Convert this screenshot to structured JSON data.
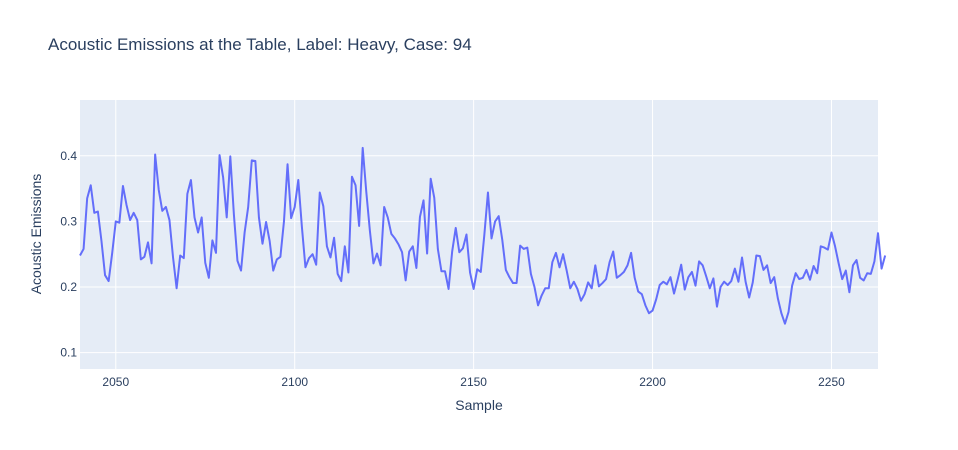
{
  "chart_data": {
    "type": "line",
    "title": "Acoustic Emissions at the Table, Label: Heavy, Case: 94",
    "xlabel": "Sample",
    "ylabel": "Acoustic Emissions",
    "xlim": [
      2040,
      2263
    ],
    "ylim": [
      0.075,
      0.485
    ],
    "xticks": [
      2050,
      2100,
      2150,
      2200,
      2250
    ],
    "yticks": [
      0.1,
      0.2,
      0.3,
      0.4
    ],
    "xtick_labels": [
      "2050",
      "2100",
      "2150",
      "2200",
      "2250"
    ],
    "ytick_labels": [
      "0.1",
      "0.2",
      "0.3",
      "0.4"
    ],
    "grid": true,
    "colors": {
      "line": "#636efa",
      "plot_bg": "#e5ecf6",
      "grid": "#ffffff",
      "text": "#2a3f5f"
    },
    "series": [
      {
        "x_start": 2040,
        "x_step": 1,
        "y": [
          0.248,
          0.258,
          0.335,
          0.355,
          0.313,
          0.315,
          0.27,
          0.218,
          0.209,
          0.252,
          0.3,
          0.298,
          0.354,
          0.325,
          0.302,
          0.313,
          0.302,
          0.242,
          0.246,
          0.268,
          0.236,
          0.402,
          0.348,
          0.316,
          0.322,
          0.302,
          0.245,
          0.198,
          0.248,
          0.244,
          0.342,
          0.363,
          0.306,
          0.283,
          0.306,
          0.237,
          0.214,
          0.271,
          0.252,
          0.401,
          0.367,
          0.306,
          0.399,
          0.311,
          0.24,
          0.225,
          0.283,
          0.322,
          0.393,
          0.392,
          0.306,
          0.266,
          0.299,
          0.27,
          0.225,
          0.242,
          0.246,
          0.3,
          0.387,
          0.305,
          0.322,
          0.363,
          0.292,
          0.23,
          0.244,
          0.25,
          0.234,
          0.344,
          0.323,
          0.262,
          0.245,
          0.275,
          0.22,
          0.209,
          0.262,
          0.222,
          0.368,
          0.355,
          0.293,
          0.412,
          0.345,
          0.286,
          0.236,
          0.251,
          0.233,
          0.322,
          0.306,
          0.281,
          0.274,
          0.265,
          0.253,
          0.21,
          0.254,
          0.262,
          0.229,
          0.307,
          0.332,
          0.251,
          0.365,
          0.336,
          0.258,
          0.224,
          0.224,
          0.197,
          0.254,
          0.29,
          0.253,
          0.259,
          0.28,
          0.222,
          0.197,
          0.227,
          0.223,
          0.28,
          0.344,
          0.274,
          0.3,
          0.308,
          0.272,
          0.226,
          0.215,
          0.206,
          0.206,
          0.263,
          0.258,
          0.26,
          0.22,
          0.2,
          0.172,
          0.187,
          0.198,
          0.198,
          0.238,
          0.252,
          0.23,
          0.25,
          0.225,
          0.198,
          0.208,
          0.197,
          0.179,
          0.189,
          0.207,
          0.198,
          0.233,
          0.201,
          0.206,
          0.212,
          0.238,
          0.254,
          0.214,
          0.218,
          0.223,
          0.233,
          0.252,
          0.214,
          0.193,
          0.189,
          0.172,
          0.16,
          0.164,
          0.181,
          0.203,
          0.208,
          0.204,
          0.215,
          0.19,
          0.211,
          0.234,
          0.196,
          0.215,
          0.223,
          0.202,
          0.239,
          0.233,
          0.216,
          0.198,
          0.213,
          0.17,
          0.2,
          0.208,
          0.203,
          0.209,
          0.228,
          0.208,
          0.245,
          0.208,
          0.184,
          0.207,
          0.248,
          0.247,
          0.226,
          0.233,
          0.206,
          0.215,
          0.183,
          0.16,
          0.144,
          0.162,
          0.202,
          0.221,
          0.212,
          0.214,
          0.226,
          0.211,
          0.232,
          0.221,
          0.262,
          0.26,
          0.257,
          0.283,
          0.262,
          0.236,
          0.212,
          0.225,
          0.192,
          0.233,
          0.241,
          0.214,
          0.21,
          0.221,
          0.22,
          0.239,
          0.282,
          0.228,
          0.248
        ]
      }
    ]
  }
}
